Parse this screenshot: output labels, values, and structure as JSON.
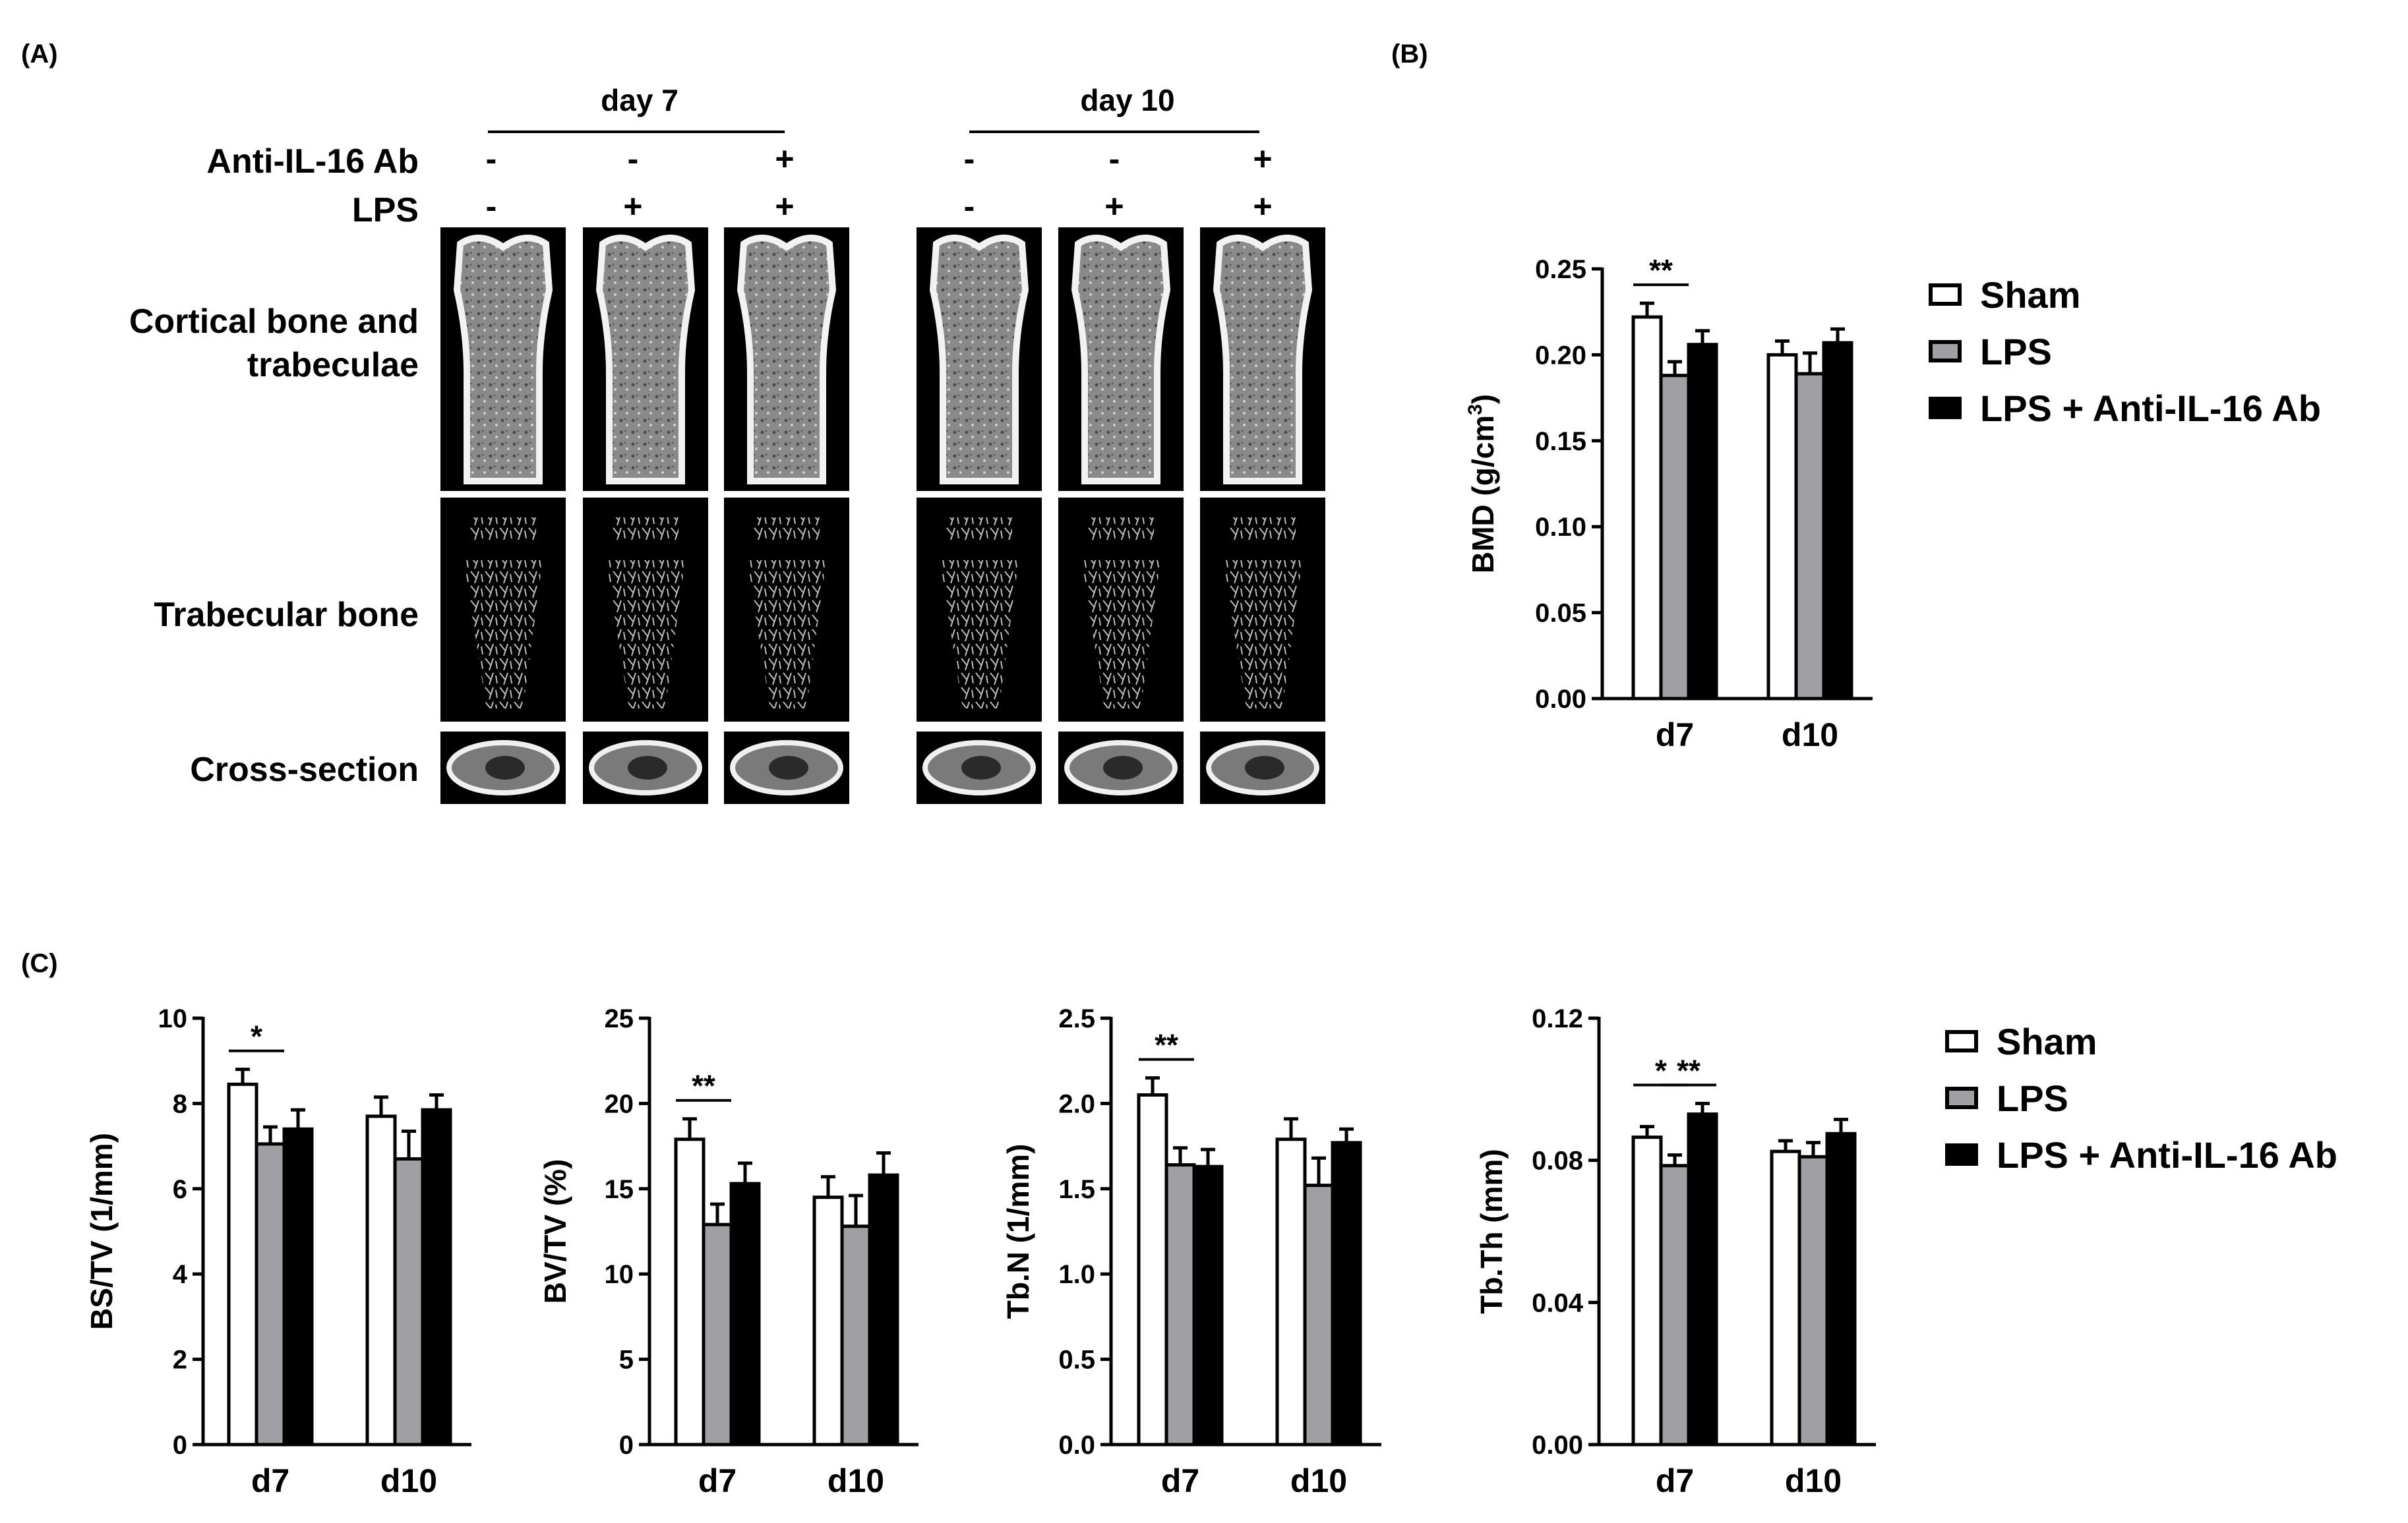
{
  "panel_labels": {
    "a": "(A)",
    "b": "(B)",
    "c": "(C)"
  },
  "panel_a": {
    "day_headers": [
      "day 7",
      "day 10"
    ],
    "row_labels": {
      "anti": "Anti-IL-16 Ab",
      "lps": "LPS"
    },
    "anti_signs": [
      "-",
      "-",
      "+",
      "-",
      "-",
      "+"
    ],
    "lps_signs": [
      "-",
      "+",
      "+",
      "-",
      "+",
      "+"
    ],
    "image_rows": [
      "Cortical bone and\ntrabeculae",
      "Trabecular bone",
      "Cross-section"
    ]
  },
  "legend": {
    "items": [
      {
        "label": "Sham",
        "color": "#ffffff"
      },
      {
        "label": "LPS",
        "color": "#a0a0a4"
      },
      {
        "label": "LPS + Anti-IL-16 Ab",
        "color": "#000000"
      }
    ]
  },
  "chart_data": [
    {
      "type": "bar",
      "panel": "B",
      "ylabel_main": "BMD (g/cm",
      "ylabel_sup": "3",
      "ylabel_end": ")",
      "categories": [
        "d7",
        "d10"
      ],
      "ylim": [
        0,
        0.25
      ],
      "yticks": [
        "0.00",
        "0.05",
        "0.10",
        "0.15",
        "0.20",
        "0.25"
      ],
      "series": [
        {
          "name": "Sham",
          "values": [
            0.222,
            0.2
          ],
          "errors": [
            0.008,
            0.008
          ]
        },
        {
          "name": "LPS",
          "values": [
            0.188,
            0.189
          ],
          "errors": [
            0.008,
            0.012
          ]
        },
        {
          "name": "LPS + Anti-IL-16 Ab",
          "values": [
            0.206,
            0.207
          ],
          "errors": [
            0.008,
            0.008
          ]
        }
      ],
      "significance": [
        {
          "category": 0,
          "from": 0,
          "to": 1,
          "label": "**"
        }
      ]
    },
    {
      "type": "bar",
      "panel": "C1",
      "ylabel_main": "BS/TV (1/mm)",
      "categories": [
        "d7",
        "d10"
      ],
      "ylim": [
        0,
        10
      ],
      "yticks": [
        "0",
        "2",
        "4",
        "6",
        "8",
        "10"
      ],
      "series": [
        {
          "name": "Sham",
          "values": [
            8.45,
            7.7
          ],
          "errors": [
            0.35,
            0.45
          ]
        },
        {
          "name": "LPS",
          "values": [
            7.05,
            6.7
          ],
          "errors": [
            0.4,
            0.65
          ]
        },
        {
          "name": "LPS + Anti-IL-16 Ab",
          "values": [
            7.4,
            7.85
          ],
          "errors": [
            0.45,
            0.35
          ]
        }
      ],
      "significance": [
        {
          "category": 0,
          "from": 0,
          "to": 1,
          "label": "*"
        }
      ]
    },
    {
      "type": "bar",
      "panel": "C2",
      "ylabel_main": "BV/TV (%)",
      "categories": [
        "d7",
        "d10"
      ],
      "ylim": [
        0,
        25
      ],
      "yticks": [
        "0",
        "5",
        "10",
        "15",
        "20",
        "25"
      ],
      "series": [
        {
          "name": "Sham",
          "values": [
            17.9,
            14.5
          ],
          "errors": [
            1.2,
            1.2
          ]
        },
        {
          "name": "LPS",
          "values": [
            12.9,
            12.8
          ],
          "errors": [
            1.2,
            1.8
          ]
        },
        {
          "name": "LPS + Anti-IL-16 Ab",
          "values": [
            15.3,
            15.8
          ],
          "errors": [
            1.2,
            1.3
          ]
        }
      ],
      "significance": [
        {
          "category": 0,
          "from": 0,
          "to": 1,
          "label": "**"
        }
      ]
    },
    {
      "type": "bar",
      "panel": "C3",
      "ylabel_main": "Tb.N (1/mm)",
      "categories": [
        "d7",
        "d10"
      ],
      "ylim": [
        0,
        2.5
      ],
      "yticks": [
        "0.0",
        "0.5",
        "1.0",
        "1.5",
        "2.0",
        "2.5"
      ],
      "series": [
        {
          "name": "Sham",
          "values": [
            2.05,
            1.79
          ],
          "errors": [
            0.1,
            0.12
          ]
        },
        {
          "name": "LPS",
          "values": [
            1.64,
            1.52
          ],
          "errors": [
            0.1,
            0.16
          ]
        },
        {
          "name": "LPS + Anti-IL-16 Ab",
          "values": [
            1.63,
            1.77
          ],
          "errors": [
            0.1,
            0.08
          ]
        }
      ],
      "significance": [
        {
          "category": 0,
          "from": 0,
          "to": 1,
          "label": "**"
        }
      ]
    },
    {
      "type": "bar",
      "panel": "C4",
      "ylabel_main": "Tb.Th (mm)",
      "categories": [
        "d7",
        "d10"
      ],
      "ylim": [
        0,
        0.12
      ],
      "yticks": [
        "0.00",
        "0.04",
        "0.08",
        "0.12"
      ],
      "series": [
        {
          "name": "Sham",
          "values": [
            0.0865,
            0.0825
          ],
          "errors": [
            0.003,
            0.003
          ]
        },
        {
          "name": "LPS",
          "values": [
            0.0785,
            0.081
          ],
          "errors": [
            0.003,
            0.004
          ]
        },
        {
          "name": "LPS + Anti-IL-16 Ab",
          "values": [
            0.093,
            0.0875
          ],
          "errors": [
            0.003,
            0.004
          ]
        }
      ],
      "significance": [
        {
          "category": 0,
          "from": 0,
          "to": 1,
          "label": "*"
        },
        {
          "category": 0,
          "from": 1,
          "to": 2,
          "label": "**"
        }
      ]
    }
  ]
}
